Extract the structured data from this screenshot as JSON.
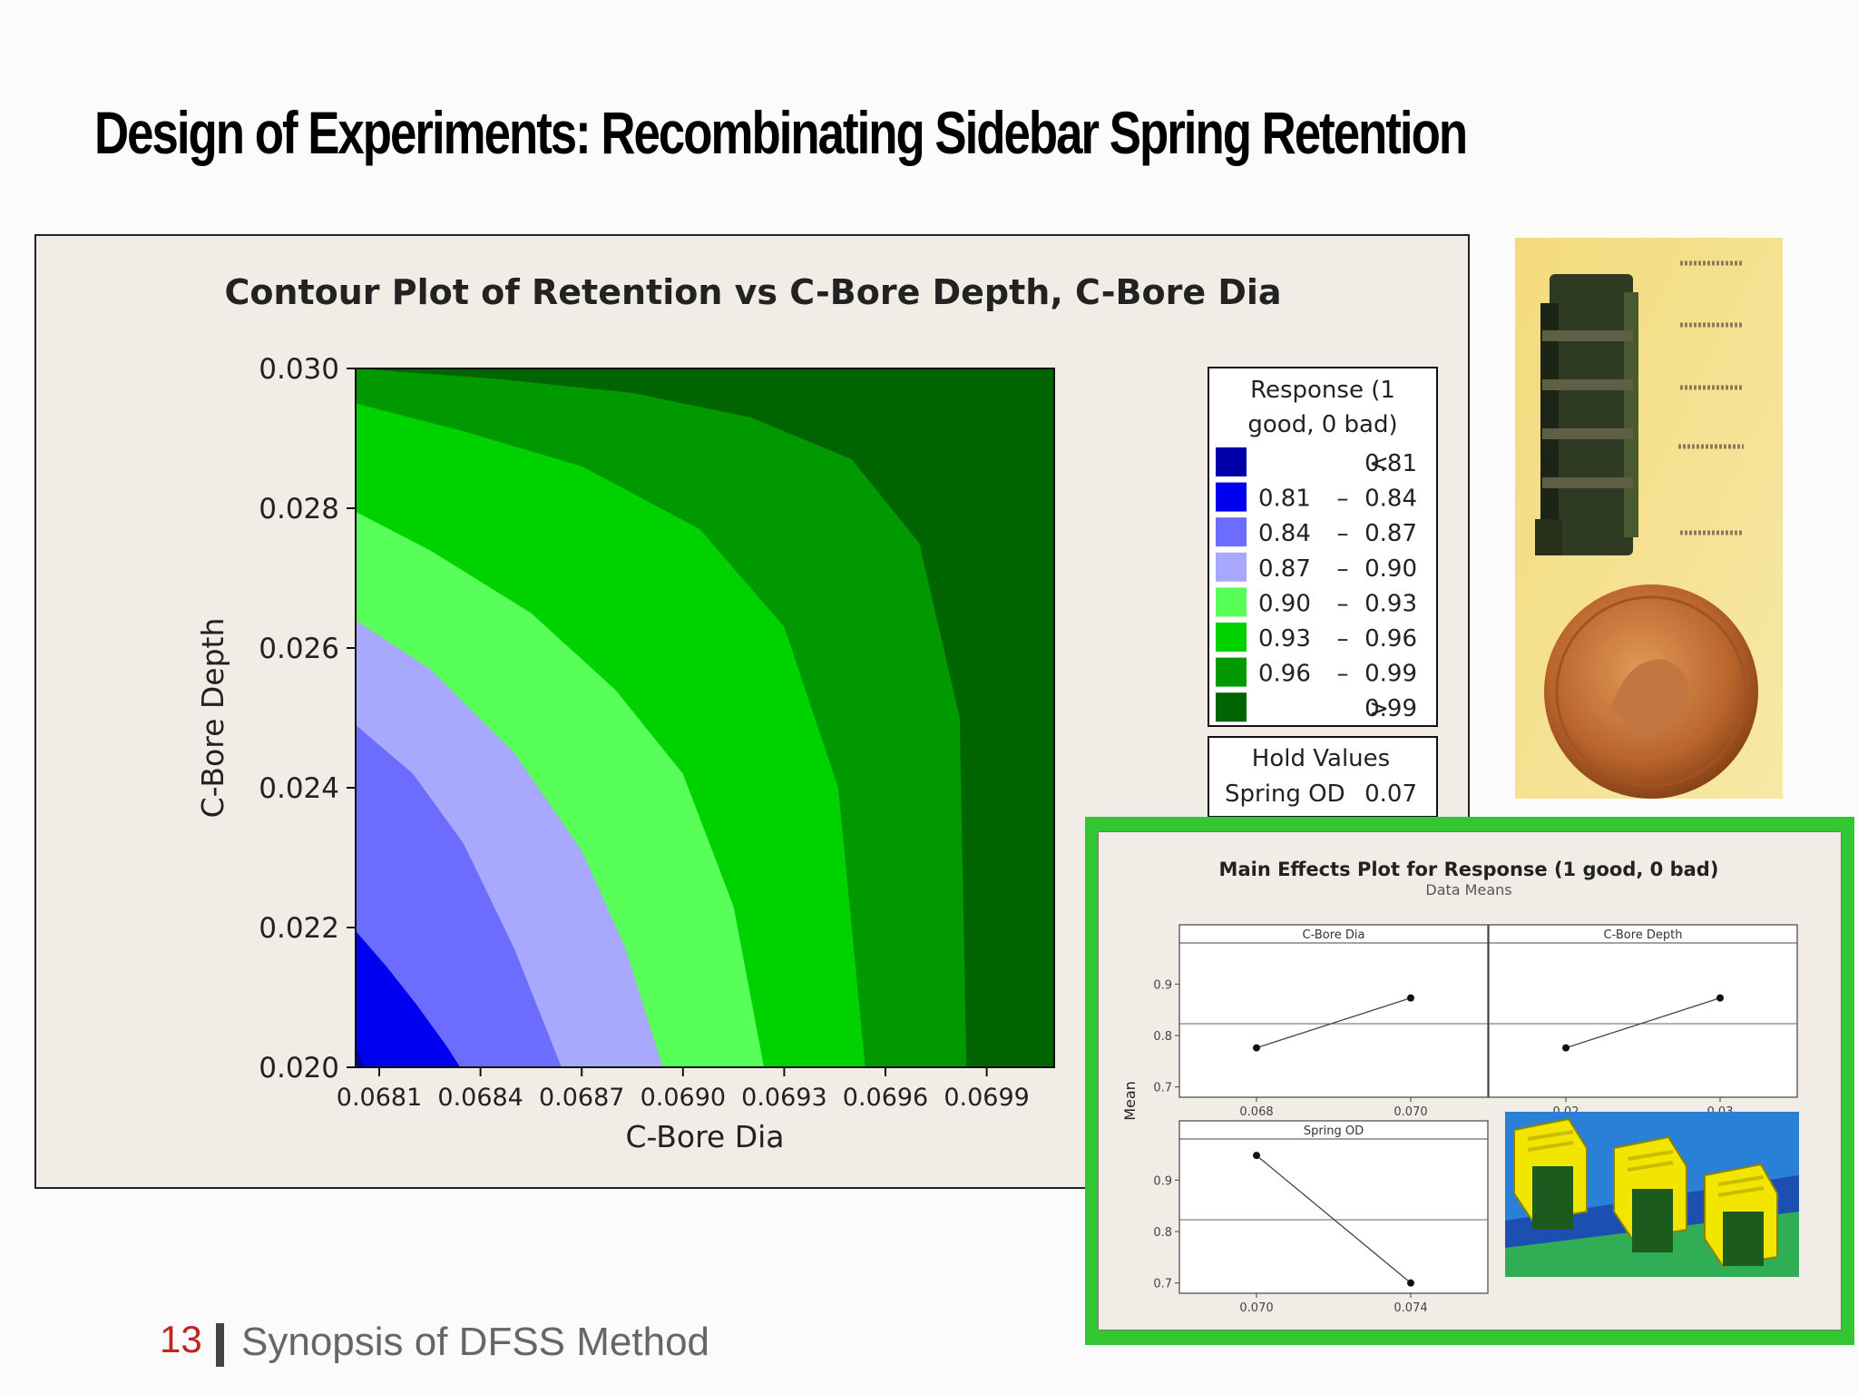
{
  "slide": {
    "title": "Design of Experiments: Recombinating Sidebar Spring Retention",
    "footer": {
      "page_number": "13",
      "section": "Synopsis of DFSS Method"
    }
  },
  "chart_data": [
    {
      "type": "contour",
      "title": "Contour Plot of Retention vs C-Bore Depth, C-Bore Dia",
      "xlabel": "C-Bore Dia",
      "ylabel": "C-Bore Depth",
      "xlim": [
        0.06803,
        0.0701
      ],
      "ylim": [
        0.02,
        0.03
      ],
      "x_ticks": [
        "0.0681",
        "0.0684",
        "0.0687",
        "0.0690",
        "0.0693",
        "0.0696",
        "0.0699"
      ],
      "y_ticks": [
        "0.030",
        "0.028",
        "0.026",
        "0.024",
        "0.022",
        "0.020"
      ],
      "legend_title": "Response (1 good, 0 bad)",
      "legend": [
        {
          "label_low": "<",
          "label_high": "0.81",
          "color": "#0000a8"
        },
        {
          "label_low": "0.81",
          "label_high": "0.84",
          "color": "#0000f0"
        },
        {
          "label_low": "0.84",
          "label_high": "0.87",
          "color": "#6c6cff"
        },
        {
          "label_low": "0.87",
          "label_high": "0.90",
          "color": "#a8a8ff"
        },
        {
          "label_low": "0.90",
          "label_high": "0.93",
          "color": "#58ff58"
        },
        {
          "label_low": "0.93",
          "label_high": "0.96",
          "color": "#00d200"
        },
        {
          "label_low": "0.96",
          "label_high": "0.99",
          "color": "#009a00"
        },
        {
          "label_low": ">",
          "label_high": "0.99",
          "color": "#006400"
        }
      ],
      "hold_values": {
        "title": "Hold Values",
        "label": "Spring OD",
        "value": "0.07"
      },
      "contour_lines": [
        {
          "level": "0.81",
          "x": [
            0.06803,
            0.06806
          ],
          "y": [
            0.0203,
            0.02
          ]
        },
        {
          "level": "0.84",
          "x": [
            0.06803,
            0.06812,
            0.06821,
            0.0683,
            0.06834
          ],
          "y": [
            0.02195,
            0.02145,
            0.0209,
            0.0203,
            0.02
          ]
        },
        {
          "level": "0.87",
          "x": [
            0.06803,
            0.0682,
            0.06835,
            0.0685,
            0.06864
          ],
          "y": [
            0.0249,
            0.0242,
            0.0232,
            0.0217,
            0.02
          ]
        },
        {
          "level": "0.90",
          "x": [
            0.06803,
            0.06825,
            0.0685,
            0.0687,
            0.06883,
            0.06894
          ],
          "y": [
            0.0264,
            0.0257,
            0.0245,
            0.0231,
            0.0217,
            0.02
          ]
        },
        {
          "level": "0.93",
          "x": [
            0.06803,
            0.06825,
            0.06855,
            0.0688,
            0.069,
            0.06915,
            0.06924
          ],
          "y": [
            0.02795,
            0.0274,
            0.0265,
            0.0254,
            0.0242,
            0.0223,
            0.02
          ]
        },
        {
          "level": "0.96",
          "x": [
            0.06803,
            0.06835,
            0.0687,
            0.06905,
            0.0693,
            0.06946,
            0.06954
          ],
          "y": [
            0.0295,
            0.0291,
            0.0286,
            0.0277,
            0.0263,
            0.024,
            0.02
          ]
        },
        {
          "level": "0.99",
          "x": [
            0.06803,
            0.06845,
            0.06885,
            0.0692,
            0.0695,
            0.0697,
            0.06982,
            0.06984
          ],
          "y": [
            0.03,
            0.02985,
            0.02965,
            0.0293,
            0.0287,
            0.0275,
            0.025,
            0.02
          ]
        }
      ]
    },
    {
      "type": "line",
      "title": "Main Effects Plot for Response (1 good, 0 bad)",
      "subtitle": "Data Means",
      "ylabel": "Mean",
      "ylim": [
        0.68,
        0.98
      ],
      "y_ticks": [
        "0.9",
        "0.8",
        "0.7"
      ],
      "reference_mean": 0.823,
      "panels": [
        {
          "name": "C-Bore Dia",
          "x_ticks": [
            "0.068",
            "0.070"
          ],
          "values": [
            0.776,
            0.873
          ]
        },
        {
          "name": "C-Bore Depth",
          "x_ticks": [
            "0.02",
            "0.03"
          ],
          "values": [
            0.776,
            0.873
          ]
        },
        {
          "name": "Spring OD",
          "x_ticks": [
            "0.070",
            "0.074"
          ],
          "values": [
            0.948,
            0.7
          ]
        }
      ]
    }
  ]
}
